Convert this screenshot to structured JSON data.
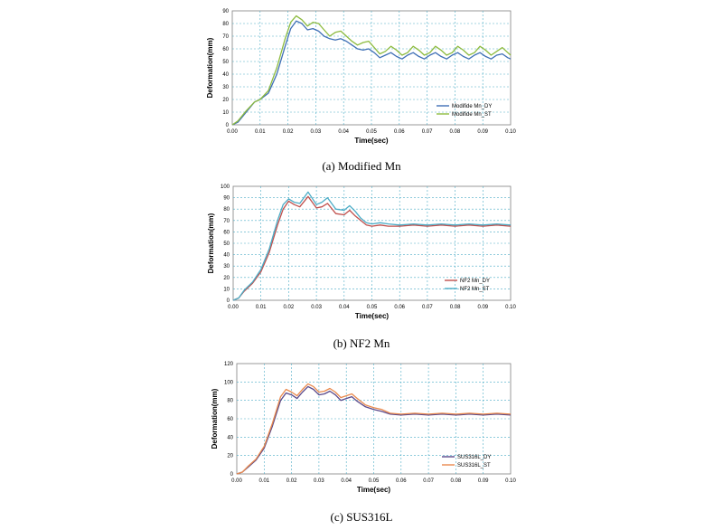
{
  "chart_data": [
    {
      "type": "line",
      "caption": "(a)  Modified  Mn",
      "xlabel": "Time(sec)",
      "ylabel": "Deformation(mm)",
      "xlim": [
        0,
        0.1
      ],
      "ylim": [
        0,
        90
      ],
      "xticks": [
        "0.00",
        "0.01",
        "0.02",
        "0.03",
        "0.04",
        "0.05",
        "0.06",
        "0.07",
        "0.08",
        "0.09",
        "0.10"
      ],
      "yticks": [
        "0",
        "10",
        "20",
        "30",
        "40",
        "50",
        "60",
        "70",
        "80",
        "90"
      ],
      "grid": true,
      "legend_position": "bottom-right",
      "series": [
        {
          "name": "Modifide Mn_DY",
          "color": "#3f6fb5",
          "x": [
            0,
            0.002,
            0.005,
            0.008,
            0.01,
            0.013,
            0.016,
            0.019,
            0.021,
            0.023,
            0.025,
            0.027,
            0.029,
            0.031,
            0.033,
            0.035,
            0.037,
            0.039,
            0.041,
            0.043,
            0.045,
            0.047,
            0.049,
            0.051,
            0.053,
            0.055,
            0.057,
            0.059,
            0.061,
            0.063,
            0.065,
            0.067,
            0.069,
            0.071,
            0.073,
            0.075,
            0.077,
            0.079,
            0.081,
            0.083,
            0.085,
            0.087,
            0.089,
            0.091,
            0.093,
            0.095,
            0.097,
            0.099,
            0.1
          ],
          "y": [
            0,
            2,
            10,
            18,
            20,
            25,
            40,
            62,
            76,
            82,
            80,
            75,
            76,
            74,
            70,
            68,
            67,
            68,
            66,
            63,
            60,
            59,
            60,
            57,
            53,
            55,
            57,
            54,
            52,
            55,
            57,
            54,
            52,
            55,
            57,
            54,
            52,
            55,
            57,
            54,
            52,
            55,
            57,
            54,
            52,
            55,
            56,
            53,
            52
          ]
        },
        {
          "name": "Modifide Mn_ST",
          "color": "#8dbb3f",
          "x": [
            0,
            0.002,
            0.005,
            0.008,
            0.01,
            0.013,
            0.016,
            0.019,
            0.021,
            0.023,
            0.025,
            0.027,
            0.029,
            0.031,
            0.033,
            0.035,
            0.037,
            0.039,
            0.041,
            0.043,
            0.045,
            0.047,
            0.049,
            0.051,
            0.053,
            0.055,
            0.057,
            0.059,
            0.061,
            0.063,
            0.065,
            0.067,
            0.069,
            0.071,
            0.073,
            0.075,
            0.077,
            0.079,
            0.081,
            0.083,
            0.085,
            0.087,
            0.089,
            0.091,
            0.093,
            0.095,
            0.097,
            0.099,
            0.1
          ],
          "y": [
            0,
            3,
            11,
            18,
            20,
            27,
            45,
            68,
            81,
            86,
            83,
            78,
            81,
            80,
            75,
            70,
            73,
            74,
            70,
            66,
            63,
            65,
            66,
            61,
            56,
            58,
            62,
            59,
            55,
            57,
            62,
            59,
            55,
            57,
            62,
            59,
            55,
            57,
            62,
            59,
            55,
            57,
            62,
            59,
            55,
            58,
            61,
            57,
            55
          ]
        }
      ]
    },
    {
      "type": "line",
      "caption": "(b)  NF2  Mn",
      "xlabel": "Time(sec)",
      "ylabel": "Deformation(mm)",
      "xlim": [
        0,
        0.1
      ],
      "ylim": [
        0,
        100
      ],
      "xticks": [
        "0.00",
        "0.01",
        "0.02",
        "0.03",
        "0.04",
        "0.05",
        "0.06",
        "0.07",
        "0.08",
        "0.09",
        "0.10"
      ],
      "yticks": [
        "0",
        "10",
        "20",
        "30",
        "40",
        "50",
        "60",
        "70",
        "80",
        "90",
        "100"
      ],
      "grid": true,
      "legend_position": "bottom-right",
      "series": [
        {
          "name": "NF2 Mn_DY",
          "color": "#c0504d",
          "x": [
            0,
            0.002,
            0.004,
            0.007,
            0.01,
            0.013,
            0.016,
            0.018,
            0.02,
            0.022,
            0.024,
            0.027,
            0.03,
            0.032,
            0.034,
            0.037,
            0.04,
            0.042,
            0.044,
            0.046,
            0.048,
            0.05,
            0.053,
            0.056,
            0.06,
            0.065,
            0.07,
            0.075,
            0.08,
            0.085,
            0.09,
            0.095,
            0.1
          ],
          "y": [
            0,
            2,
            8,
            15,
            25,
            42,
            66,
            80,
            87,
            84,
            82,
            91,
            81,
            82,
            85,
            76,
            75,
            79,
            74,
            70,
            66,
            65,
            66,
            65,
            65,
            66,
            65,
            66,
            65,
            66,
            65,
            66,
            65
          ]
        },
        {
          "name": "NF2 Mn_ST",
          "color": "#4bacc6",
          "x": [
            0,
            0.002,
            0.004,
            0.007,
            0.01,
            0.013,
            0.016,
            0.018,
            0.02,
            0.022,
            0.024,
            0.027,
            0.03,
            0.032,
            0.034,
            0.037,
            0.04,
            0.042,
            0.044,
            0.046,
            0.048,
            0.05,
            0.053,
            0.056,
            0.06,
            0.065,
            0.07,
            0.075,
            0.08,
            0.085,
            0.09,
            0.095,
            0.1
          ],
          "y": [
            0,
            2,
            9,
            16,
            27,
            45,
            70,
            84,
            89,
            86,
            85,
            95,
            84,
            86,
            90,
            80,
            79,
            83,
            78,
            72,
            68,
            67,
            68,
            67,
            66,
            67,
            66,
            67,
            66,
            67,
            66,
            67,
            66
          ]
        }
      ]
    },
    {
      "type": "line",
      "caption": "(c)  SUS316L",
      "xlabel": "Time(sec)",
      "ylabel": "Deformation(mm)",
      "xlim": [
        0,
        0.1
      ],
      "ylim": [
        0,
        120
      ],
      "xticks": [
        "0.00",
        "0.01",
        "0.02",
        "0.03",
        "0.04",
        "0.05",
        "0.06",
        "0.07",
        "0.08",
        "0.09",
        "0.10"
      ],
      "yticks": [
        "0",
        "20",
        "40",
        "60",
        "80",
        "100",
        "120"
      ],
      "grid": true,
      "legend_position": "bottom-right",
      "series": [
        {
          "name": "SUS316L_DY",
          "color": "#5b4a8b",
          "x": [
            0,
            0.002,
            0.004,
            0.007,
            0.01,
            0.013,
            0.016,
            0.018,
            0.02,
            0.022,
            0.024,
            0.026,
            0.028,
            0.03,
            0.032,
            0.034,
            0.036,
            0.038,
            0.04,
            0.042,
            0.044,
            0.047,
            0.05,
            0.053,
            0.056,
            0.06,
            0.065,
            0.07,
            0.075,
            0.08,
            0.085,
            0.09,
            0.095,
            0.1
          ],
          "y": [
            0,
            2,
            7,
            15,
            28,
            52,
            80,
            88,
            86,
            82,
            89,
            95,
            92,
            86,
            87,
            90,
            86,
            80,
            82,
            84,
            79,
            73,
            70,
            68,
            65,
            64,
            65,
            64,
            65,
            64,
            65,
            64,
            65,
            64
          ]
        },
        {
          "name": "SUS316L_ST",
          "color": "#e98a4e",
          "x": [
            0,
            0.002,
            0.004,
            0.007,
            0.01,
            0.013,
            0.016,
            0.018,
            0.02,
            0.022,
            0.024,
            0.026,
            0.028,
            0.03,
            0.032,
            0.034,
            0.036,
            0.038,
            0.04,
            0.042,
            0.044,
            0.047,
            0.05,
            0.053,
            0.056,
            0.06,
            0.065,
            0.07,
            0.075,
            0.08,
            0.085,
            0.09,
            0.095,
            0.1
          ],
          "y": [
            0,
            2,
            8,
            16,
            30,
            55,
            84,
            92,
            89,
            85,
            92,
            98,
            95,
            89,
            90,
            93,
            89,
            83,
            85,
            87,
            82,
            75,
            72,
            70,
            66,
            65,
            66,
            65,
            66,
            65,
            66,
            65,
            66,
            65
          ]
        }
      ]
    }
  ]
}
